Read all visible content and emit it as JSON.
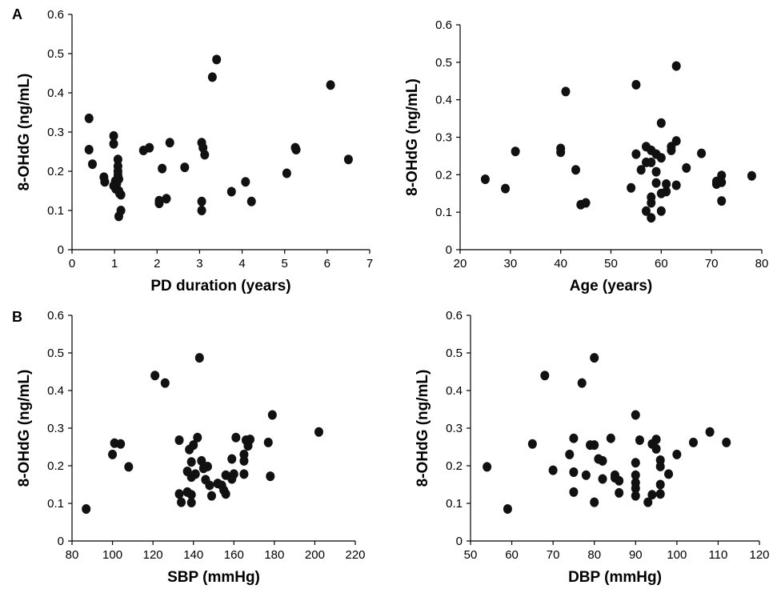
{
  "panel_labels": {
    "a": "A",
    "b": "B"
  },
  "chart_data": [
    {
      "type": "scatter",
      "title": "",
      "xlabel": "PD duration (years)",
      "ylabel": "8-OHdG (ng/mL)",
      "xlim": [
        0,
        7
      ],
      "ylim": [
        0,
        0.6
      ],
      "xticks": [
        "0",
        "1",
        "2",
        "3",
        "4",
        "5",
        "6",
        "7"
      ],
      "yticks": [
        "0",
        "0.1",
        "0.2",
        "0.3",
        "0.4",
        "0.5",
        "0.6"
      ],
      "grid": false,
      "points": [
        {
          "x": 0.4,
          "y": 0.335
        },
        {
          "x": 0.4,
          "y": 0.255
        },
        {
          "x": 0.48,
          "y": 0.218
        },
        {
          "x": 0.75,
          "y": 0.185
        },
        {
          "x": 0.77,
          "y": 0.173
        },
        {
          "x": 0.98,
          "y": 0.29
        },
        {
          "x": 0.98,
          "y": 0.27
        },
        {
          "x": 0.98,
          "y": 0.163
        },
        {
          "x": 1.02,
          "y": 0.175
        },
        {
          "x": 1.03,
          "y": 0.155
        },
        {
          "x": 1.05,
          "y": 0.168
        },
        {
          "x": 1.08,
          "y": 0.23
        },
        {
          "x": 1.08,
          "y": 0.213
        },
        {
          "x": 1.08,
          "y": 0.2
        },
        {
          "x": 1.08,
          "y": 0.19
        },
        {
          "x": 1.1,
          "y": 0.18
        },
        {
          "x": 1.1,
          "y": 0.15
        },
        {
          "x": 1.12,
          "y": 0.143
        },
        {
          "x": 1.15,
          "y": 0.14
        },
        {
          "x": 1.15,
          "y": 0.1
        },
        {
          "x": 1.1,
          "y": 0.085
        },
        {
          "x": 1.68,
          "y": 0.253
        },
        {
          "x": 1.82,
          "y": 0.26
        },
        {
          "x": 2.05,
          "y": 0.118
        },
        {
          "x": 2.05,
          "y": 0.125
        },
        {
          "x": 2.12,
          "y": 0.207
        },
        {
          "x": 2.22,
          "y": 0.13
        },
        {
          "x": 2.3,
          "y": 0.273
        },
        {
          "x": 2.65,
          "y": 0.21
        },
        {
          "x": 3.05,
          "y": 0.273
        },
        {
          "x": 3.08,
          "y": 0.26
        },
        {
          "x": 3.12,
          "y": 0.242
        },
        {
          "x": 3.05,
          "y": 0.123
        },
        {
          "x": 3.05,
          "y": 0.1
        },
        {
          "x": 3.3,
          "y": 0.44
        },
        {
          "x": 3.4,
          "y": 0.485
        },
        {
          "x": 3.75,
          "y": 0.148
        },
        {
          "x": 4.08,
          "y": 0.173
        },
        {
          "x": 4.22,
          "y": 0.123
        },
        {
          "x": 5.05,
          "y": 0.195
        },
        {
          "x": 5.25,
          "y": 0.26
        },
        {
          "x": 5.27,
          "y": 0.255
        },
        {
          "x": 6.08,
          "y": 0.42
        },
        {
          "x": 6.5,
          "y": 0.23
        }
      ]
    },
    {
      "type": "scatter",
      "title": "",
      "xlabel": "Age (years)",
      "ylabel": "8-OHdG (ng/mL)",
      "xlim": [
        20,
        80
      ],
      "ylim": [
        0,
        0.6
      ],
      "xticks": [
        "20",
        "30",
        "40",
        "50",
        "60",
        "70",
        "80"
      ],
      "yticks": [
        "0",
        "0.1",
        "0.2",
        "0.3",
        "0.4",
        "0.5",
        "0.6"
      ],
      "grid": false,
      "points": [
        {
          "x": 25,
          "y": 0.188
        },
        {
          "x": 29,
          "y": 0.163
        },
        {
          "x": 31,
          "y": 0.262
        },
        {
          "x": 40,
          "y": 0.27
        },
        {
          "x": 40,
          "y": 0.26
        },
        {
          "x": 41,
          "y": 0.422
        },
        {
          "x": 43,
          "y": 0.213
        },
        {
          "x": 44,
          "y": 0.12
        },
        {
          "x": 45,
          "y": 0.125
        },
        {
          "x": 54,
          "y": 0.165
        },
        {
          "x": 55,
          "y": 0.44
        },
        {
          "x": 55,
          "y": 0.255
        },
        {
          "x": 56,
          "y": 0.213
        },
        {
          "x": 57,
          "y": 0.275
        },
        {
          "x": 57,
          "y": 0.233
        },
        {
          "x": 57,
          "y": 0.103
        },
        {
          "x": 58,
          "y": 0.265
        },
        {
          "x": 58,
          "y": 0.233
        },
        {
          "x": 58,
          "y": 0.14
        },
        {
          "x": 58,
          "y": 0.125
        },
        {
          "x": 58,
          "y": 0.085
        },
        {
          "x": 59,
          "y": 0.255
        },
        {
          "x": 59,
          "y": 0.208
        },
        {
          "x": 59,
          "y": 0.178
        },
        {
          "x": 60,
          "y": 0.338
        },
        {
          "x": 60,
          "y": 0.245
        },
        {
          "x": 60,
          "y": 0.15
        },
        {
          "x": 60,
          "y": 0.103
        },
        {
          "x": 61,
          "y": 0.175
        },
        {
          "x": 61,
          "y": 0.155
        },
        {
          "x": 62,
          "y": 0.275
        },
        {
          "x": 62,
          "y": 0.265
        },
        {
          "x": 63,
          "y": 0.49
        },
        {
          "x": 63,
          "y": 0.29
        },
        {
          "x": 63,
          "y": 0.172
        },
        {
          "x": 65,
          "y": 0.218
        },
        {
          "x": 68,
          "y": 0.257
        },
        {
          "x": 71,
          "y": 0.182
        },
        {
          "x": 71,
          "y": 0.175
        },
        {
          "x": 72,
          "y": 0.198
        },
        {
          "x": 72,
          "y": 0.18
        },
        {
          "x": 72,
          "y": 0.13
        },
        {
          "x": 78,
          "y": 0.197
        }
      ]
    },
    {
      "type": "scatter",
      "title": "",
      "xlabel": "SBP (mmHg)",
      "ylabel": "8-OHdG (ng/mL)",
      "xlim": [
        80,
        220
      ],
      "ylim": [
        0,
        0.6
      ],
      "xticks": [
        "80",
        "100",
        "120",
        "140",
        "160",
        "180",
        "200",
        "220"
      ],
      "yticks": [
        "0",
        "0.1",
        "0.2",
        "0.3",
        "0.4",
        "0.5",
        "0.6"
      ],
      "grid": false,
      "points": [
        {
          "x": 87,
          "y": 0.085
        },
        {
          "x": 100,
          "y": 0.23
        },
        {
          "x": 101,
          "y": 0.26
        },
        {
          "x": 104,
          "y": 0.258
        },
        {
          "x": 108,
          "y": 0.197
        },
        {
          "x": 121,
          "y": 0.44
        },
        {
          "x": 126,
          "y": 0.42
        },
        {
          "x": 133,
          "y": 0.268
        },
        {
          "x": 133,
          "y": 0.125
        },
        {
          "x": 134,
          "y": 0.103
        },
        {
          "x": 137,
          "y": 0.185
        },
        {
          "x": 137,
          "y": 0.13
        },
        {
          "x": 138,
          "y": 0.243
        },
        {
          "x": 139,
          "y": 0.21
        },
        {
          "x": 139,
          "y": 0.17
        },
        {
          "x": 139,
          "y": 0.123
        },
        {
          "x": 139,
          "y": 0.102
        },
        {
          "x": 140,
          "y": 0.255
        },
        {
          "x": 141,
          "y": 0.178
        },
        {
          "x": 142,
          "y": 0.275
        },
        {
          "x": 143,
          "y": 0.487
        },
        {
          "x": 144,
          "y": 0.213
        },
        {
          "x": 145,
          "y": 0.193
        },
        {
          "x": 146,
          "y": 0.163
        },
        {
          "x": 147,
          "y": 0.198
        },
        {
          "x": 148,
          "y": 0.148
        },
        {
          "x": 149,
          "y": 0.12
        },
        {
          "x": 152,
          "y": 0.153
        },
        {
          "x": 154,
          "y": 0.148
        },
        {
          "x": 155,
          "y": 0.135
        },
        {
          "x": 156,
          "y": 0.175
        },
        {
          "x": 156,
          "y": 0.125
        },
        {
          "x": 159,
          "y": 0.218
        },
        {
          "x": 159,
          "y": 0.165
        },
        {
          "x": 160,
          "y": 0.178
        },
        {
          "x": 161,
          "y": 0.275
        },
        {
          "x": 165,
          "y": 0.23
        },
        {
          "x": 165,
          "y": 0.213
        },
        {
          "x": 165,
          "y": 0.178
        },
        {
          "x": 166,
          "y": 0.268
        },
        {
          "x": 167,
          "y": 0.253
        },
        {
          "x": 168,
          "y": 0.27
        },
        {
          "x": 177,
          "y": 0.262
        },
        {
          "x": 178,
          "y": 0.172
        },
        {
          "x": 179,
          "y": 0.335
        },
        {
          "x": 202,
          "y": 0.29
        }
      ]
    },
    {
      "type": "scatter",
      "title": "",
      "xlabel": "DBP (mmHg)",
      "ylabel": "8-OHdG (ng/mL)",
      "xlim": [
        50,
        120
      ],
      "ylim": [
        0,
        0.6
      ],
      "xticks": [
        "50",
        "60",
        "70",
        "80",
        "90",
        "100",
        "110",
        "120"
      ],
      "yticks": [
        "0",
        "0.1",
        "0.2",
        "0.3",
        "0.4",
        "0.5",
        "0.6"
      ],
      "grid": false,
      "points": [
        {
          "x": 54,
          "y": 0.197
        },
        {
          "x": 59,
          "y": 0.085
        },
        {
          "x": 65,
          "y": 0.258
        },
        {
          "x": 68,
          "y": 0.44
        },
        {
          "x": 70,
          "y": 0.188
        },
        {
          "x": 74,
          "y": 0.23
        },
        {
          "x": 75,
          "y": 0.273
        },
        {
          "x": 75,
          "y": 0.183
        },
        {
          "x": 75,
          "y": 0.13
        },
        {
          "x": 77,
          "y": 0.42
        },
        {
          "x": 78,
          "y": 0.175
        },
        {
          "x": 79,
          "y": 0.255
        },
        {
          "x": 80,
          "y": 0.487
        },
        {
          "x": 80,
          "y": 0.255
        },
        {
          "x": 80,
          "y": 0.103
        },
        {
          "x": 81,
          "y": 0.218
        },
        {
          "x": 82,
          "y": 0.213
        },
        {
          "x": 82,
          "y": 0.165
        },
        {
          "x": 84,
          "y": 0.273
        },
        {
          "x": 85,
          "y": 0.175
        },
        {
          "x": 85,
          "y": 0.168
        },
        {
          "x": 86,
          "y": 0.128
        },
        {
          "x": 86,
          "y": 0.16
        },
        {
          "x": 90,
          "y": 0.335
        },
        {
          "x": 90,
          "y": 0.208
        },
        {
          "x": 90,
          "y": 0.175
        },
        {
          "x": 90,
          "y": 0.155
        },
        {
          "x": 90,
          "y": 0.14
        },
        {
          "x": 90,
          "y": 0.12
        },
        {
          "x": 91,
          "y": 0.268
        },
        {
          "x": 93,
          "y": 0.103
        },
        {
          "x": 94,
          "y": 0.258
        },
        {
          "x": 94,
          "y": 0.123
        },
        {
          "x": 95,
          "y": 0.27
        },
        {
          "x": 95,
          "y": 0.245
        },
        {
          "x": 96,
          "y": 0.215
        },
        {
          "x": 96,
          "y": 0.198
        },
        {
          "x": 96,
          "y": 0.15
        },
        {
          "x": 96,
          "y": 0.125
        },
        {
          "x": 98,
          "y": 0.178
        },
        {
          "x": 100,
          "y": 0.23
        },
        {
          "x": 104,
          "y": 0.262
        },
        {
          "x": 108,
          "y": 0.29
        },
        {
          "x": 112,
          "y": 0.262
        }
      ]
    }
  ]
}
